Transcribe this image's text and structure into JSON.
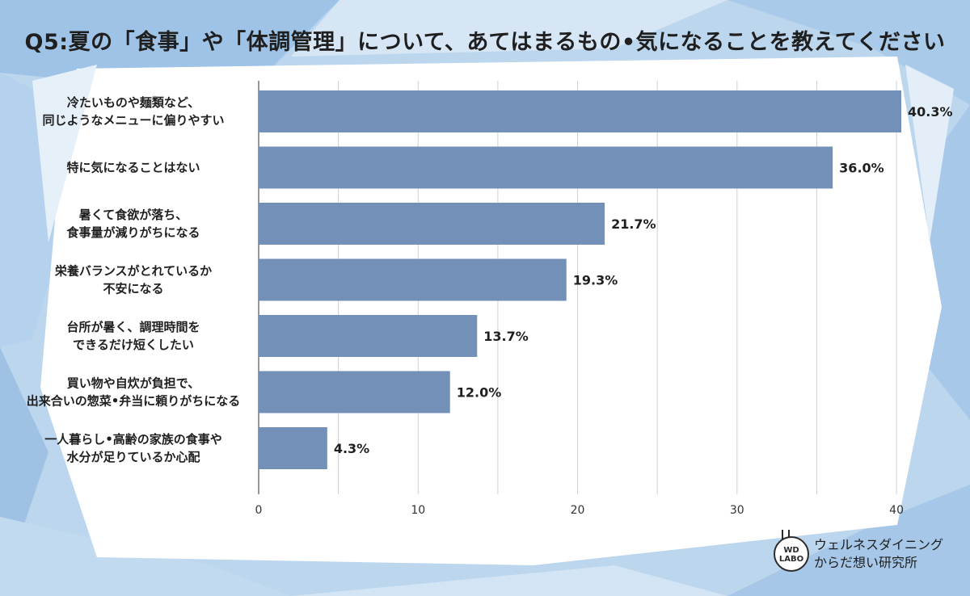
{
  "title": "Q5:夏の「食事」や「体調管理」について、あてはまるもの•気になることを教えてください",
  "colors": {
    "bar": "#7391b8",
    "background_light": "#ffffff",
    "background_blue": "#a9c9ea"
  },
  "chart_data": {
    "type": "bar",
    "orientation": "horizontal",
    "categories": [
      [
        "冷たいものや麺類など、",
        "同じようなメニューに偏りやすい"
      ],
      [
        "特に気になることはない"
      ],
      [
        "暑くて食欲が落ち、",
        "食事量が減りがちになる"
      ],
      [
        "栄養バランスがとれているか",
        "不安になる"
      ],
      [
        "台所が暑く、調理時間を",
        "できるだけ短くしたい"
      ],
      [
        "買い物や自炊が負担で、",
        "出来合いの惣菜•弁当に頼りがちになる"
      ],
      [
        "一人暮らし•高齢の家族の食事や",
        "水分が足りているか心配"
      ]
    ],
    "values": [
      40.3,
      36.0,
      21.7,
      19.3,
      13.7,
      12.0,
      4.3
    ],
    "value_labels": [
      "40.3%",
      "36.0%",
      "21.7%",
      "19.3%",
      "13.7%",
      "12.0%",
      "4.3%"
    ],
    "xlim": [
      0,
      41
    ],
    "x_ticks": [
      0,
      10,
      20,
      30,
      40
    ],
    "grid": true,
    "xlabel": "",
    "ylabel": ""
  },
  "logo": {
    "badge_line1": "WD",
    "badge_line2": "LABO",
    "name_line1": "ウェルネスダイニング",
    "name_line2": "からだ想い研究所"
  }
}
